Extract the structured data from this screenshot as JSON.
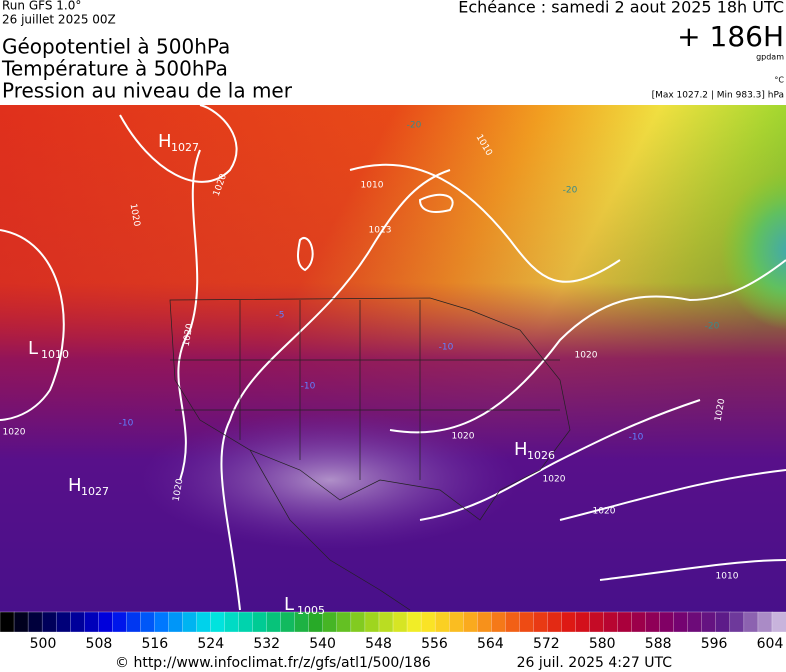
{
  "header": {
    "run": "Run GFS 1.0°",
    "run_date": "26 juillet 2025 00Z",
    "titles": [
      "Géopotentiel à 500hPa",
      "Température à 500hPa",
      "Pression au niveau de la mer"
    ],
    "echeance": "Echéance : samedi 2 aout 2025 18h UTC",
    "lead": "+ 186H",
    "unit_geo": "gpdam",
    "unit_temp": "°C",
    "extremes": "[Max 1027.2 | Min 983.3] hPa"
  },
  "map": {
    "centers": [
      {
        "letter": "H",
        "value": "1027"
      },
      {
        "letter": "L",
        "value": "1010"
      },
      {
        "letter": "H",
        "value": "1027"
      },
      {
        "letter": "H",
        "value": "1026"
      },
      {
        "letter": "L",
        "value": "1005"
      }
    ],
    "isobar_labels": [
      "1020",
      "1010",
      "1013",
      "1020",
      "1020",
      "1020",
      "1020",
      "1020",
      "1020",
      "1020",
      "1010",
      "1020",
      "1020",
      "1010"
    ],
    "temp_labels": [
      "-20",
      "-20",
      "-5",
      "-10",
      "-10",
      "-10",
      "-10",
      "-20"
    ]
  },
  "colorbar": {
    "ticks": [
      500,
      508,
      516,
      524,
      532,
      540,
      548,
      556,
      564,
      572,
      580,
      588,
      596,
      604
    ]
  },
  "footer": {
    "source": "© http://www.infoclimat.fr/z/gfs/atl1/500/186",
    "generated": "26 juil. 2025  4:27 UTC"
  }
}
